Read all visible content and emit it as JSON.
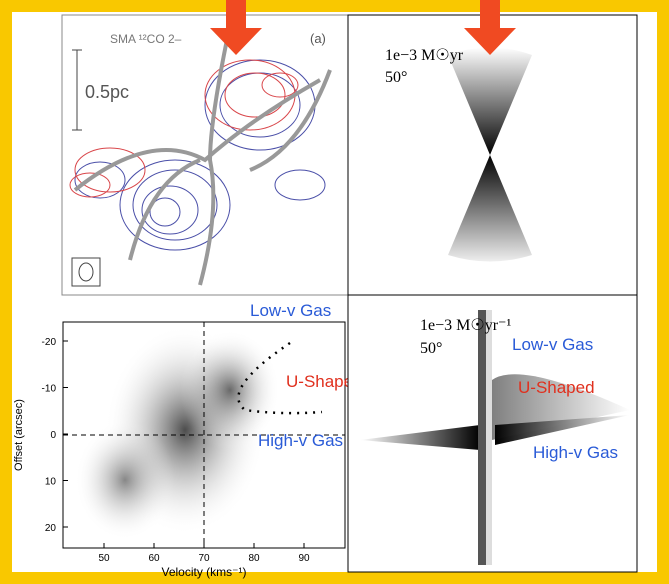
{
  "panels": [
    {
      "title": "SMA ¹²CO 2–",
      "tag": "(a)",
      "scale": "0.5pc"
    },
    {
      "rate": "1e−3 M☉yr",
      "angle": "50°"
    },
    {
      "notes": [
        "Low-v Gas",
        "U-Shaped",
        "High-v Gas"
      ],
      "ylabel": "Offset (arcsec)",
      "xlabel": "Velocity (kms⁻¹)",
      "yticks": [
        "-20",
        "-10",
        "0",
        "10",
        "20"
      ],
      "xticks": [
        "50",
        "60",
        "70",
        "80",
        "90"
      ]
    },
    {
      "rate": "1e−3 M☉yr⁻¹",
      "angle": "50°",
      "notes": [
        "Low-v Gas",
        "U-Shaped",
        "High-v Gas"
      ]
    }
  ]
}
